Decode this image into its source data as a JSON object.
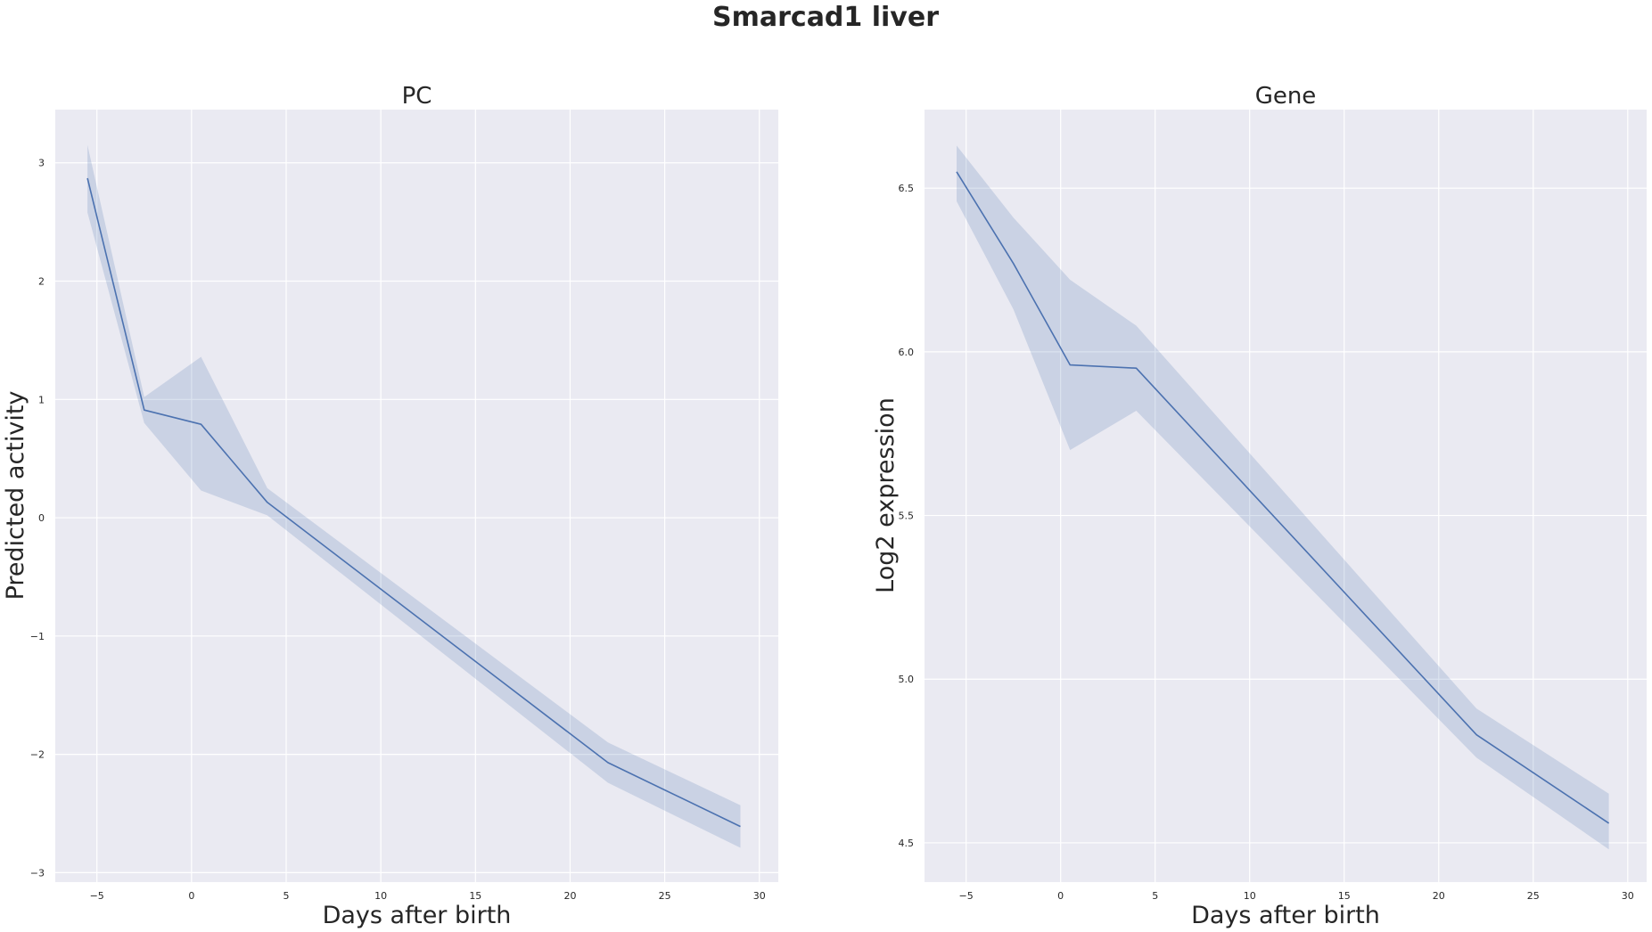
{
  "figure": {
    "title": "Smarcad1 liver"
  },
  "chart_data": [
    {
      "type": "line",
      "title": "PC",
      "xlabel": "Days after birth",
      "ylabel": "Predicted activity",
      "xlim": [
        -7.2,
        31
      ],
      "ylim": [
        -3.08,
        3.45
      ],
      "xticks": [
        -5,
        0,
        5,
        10,
        15,
        20,
        25,
        30
      ],
      "yticks": [
        -3,
        -2,
        -1,
        0,
        1,
        2,
        3
      ],
      "grid": true,
      "color": "#4c72b0",
      "series": [
        {
          "x": [
            -5.5,
            -2.5,
            0.5,
            4.0,
            22.0,
            29.0
          ],
          "y": [
            2.87,
            0.91,
            0.79,
            0.13,
            -2.07,
            -2.61
          ],
          "lower": [
            2.58,
            0.8,
            0.23,
            0.02,
            -2.24,
            -2.79
          ],
          "upper": [
            3.15,
            1.02,
            1.36,
            0.25,
            -1.9,
            -2.43
          ]
        }
      ]
    },
    {
      "type": "line",
      "title": "Gene",
      "xlabel": "Days after birth",
      "ylabel": "Log2 expression",
      "xlim": [
        -7.2,
        31
      ],
      "ylim": [
        4.38,
        6.74
      ],
      "xticks": [
        -5,
        0,
        5,
        10,
        15,
        20,
        25,
        30
      ],
      "yticks": [
        4.5,
        5.0,
        5.5,
        6.0,
        6.5
      ],
      "grid": true,
      "color": "#4c72b0",
      "series": [
        {
          "x": [
            -5.5,
            -2.5,
            0.5,
            4.0,
            22.0,
            29.0
          ],
          "y": [
            6.55,
            6.27,
            5.96,
            5.95,
            4.83,
            4.56
          ],
          "lower": [
            6.46,
            6.13,
            5.7,
            5.82,
            4.76,
            4.48
          ],
          "upper": [
            6.63,
            6.41,
            6.22,
            6.08,
            4.91,
            4.65
          ]
        }
      ]
    }
  ]
}
